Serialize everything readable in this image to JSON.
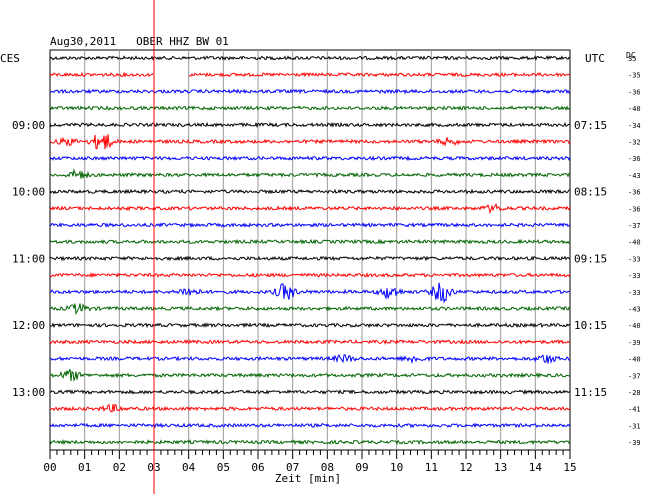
{
  "header": {
    "title": "Aug30,2011   OBER HHZ BW 01",
    "left_zone": "CES",
    "right_zone": "UTC",
    "dc_label": "DC"
  },
  "chart_data": {
    "type": "line",
    "title": "Aug30,2011   OBER HHZ BW 01",
    "xlabel": "Zeit [min]",
    "xlim": [
      0,
      15
    ],
    "x_tick_labels": [
      "00",
      "01",
      "02",
      "03",
      "04",
      "05",
      "06",
      "07",
      "08",
      "09",
      "10",
      "11",
      "12",
      "13",
      "14",
      "15"
    ],
    "trace_colors": [
      "#000000",
      "#ff0000",
      "#0000ff",
      "#006400"
    ],
    "marker_color": "#ff0000",
    "marker_minute": 3,
    "trace_count": 24,
    "left_time_labels": [
      "09:00",
      "10:00",
      "11:00",
      "12:00",
      "13:00"
    ],
    "right_time_labels": [
      "07:15",
      "08:15",
      "09:15",
      "10:15",
      "11:15"
    ],
    "left_label_rows": [
      4,
      8,
      12,
      16,
      20
    ],
    "dc_values": [
      "35",
      "-35",
      "-36",
      "-40",
      "-34",
      "-32",
      "-36",
      "-43",
      "-36",
      "-36",
      "-37",
      "-40",
      "-33",
      "-33",
      "-33",
      "-43",
      "-40",
      "-39",
      "-40",
      "-37",
      "-28",
      "-41",
      "-31",
      "-39"
    ],
    "gap": {
      "row": 1,
      "from_minute": 3.0,
      "to_minute": 4.0
    },
    "events": [
      {
        "row": 5,
        "minute": 1.5,
        "amplitude": 10
      },
      {
        "row": 5,
        "minute": 0.5,
        "amplitude": 3
      },
      {
        "row": 5,
        "minute": 11.5,
        "amplitude": 3
      },
      {
        "row": 7,
        "minute": 0.8,
        "amplitude": 4
      },
      {
        "row": 9,
        "minute": 12.8,
        "amplitude": 3
      },
      {
        "row": 14,
        "minute": 4.0,
        "amplitude": 4
      },
      {
        "row": 14,
        "minute": 6.8,
        "amplitude": 8
      },
      {
        "row": 14,
        "minute": 9.8,
        "amplitude": 6
      },
      {
        "row": 14,
        "minute": 11.3,
        "amplitude": 10
      },
      {
        "row": 15,
        "minute": 0.8,
        "amplitude": 4
      },
      {
        "row": 18,
        "minute": 8.5,
        "amplitude": 3
      },
      {
        "row": 18,
        "minute": 10.5,
        "amplitude": 3
      },
      {
        "row": 18,
        "minute": 14.3,
        "amplitude": 4
      },
      {
        "row": 19,
        "minute": 0.6,
        "amplitude": 5
      },
      {
        "row": 21,
        "minute": 1.8,
        "amplitude": 3
      }
    ]
  }
}
